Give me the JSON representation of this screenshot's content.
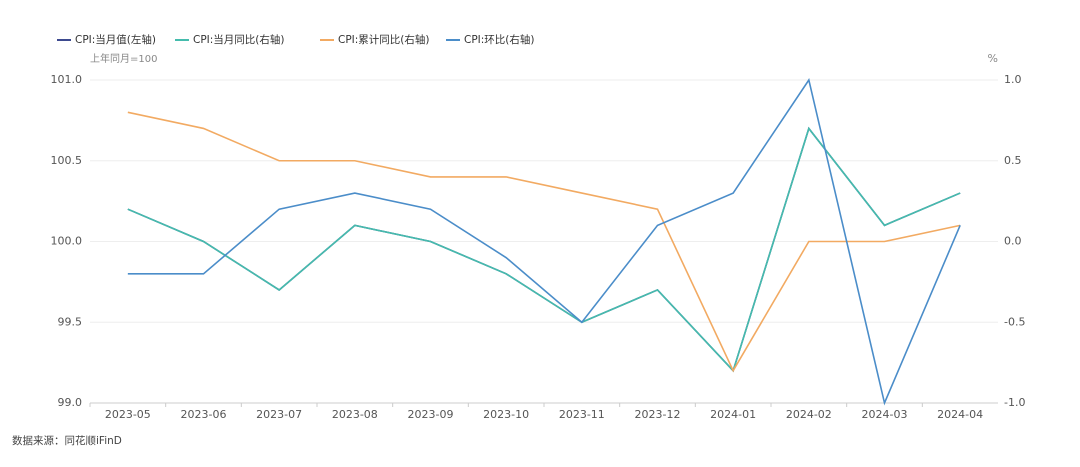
{
  "chart_data": {
    "type": "line",
    "categories": [
      "2023-05",
      "2023-06",
      "2023-07",
      "2023-08",
      "2023-09",
      "2023-10",
      "2023-11",
      "2023-12",
      "2024-01",
      "2024-02",
      "2024-03",
      "2024-04"
    ],
    "series": [
      {
        "name": "CPI:当月值(左轴)",
        "color": "#3d4a8f",
        "values": [
          100.2,
          100.0,
          99.7,
          100.1,
          100.0,
          99.8,
          99.5,
          99.7,
          99.2,
          100.7,
          100.1,
          100.3
        ]
      },
      {
        "name": "CPI:当月同比(右轴)",
        "color": "#45bcad",
        "axis": "y2",
        "values": [
          0.2,
          0.0,
          -0.3,
          0.1,
          0.0,
          -0.2,
          -0.5,
          -0.3,
          -0.8,
          0.7,
          0.1,
          0.3
        ]
      },
      {
        "name": "CPI:累计同比(右轴)",
        "color": "#f2aa62",
        "axis": "y2",
        "values": [
          0.8,
          0.7,
          0.5,
          0.5,
          0.4,
          0.4,
          0.3,
          0.2,
          -0.8,
          0.0,
          0.0,
          0.1
        ]
      },
      {
        "name": "CPI:环比(右轴)",
        "color": "#4b8dc9",
        "axis": "y2",
        "values": [
          -0.2,
          -0.2,
          0.2,
          0.3,
          0.2,
          -0.1,
          -0.5,
          0.1,
          0.3,
          1.0,
          -1.0,
          0.1
        ]
      }
    ],
    "y_label": "上年同月=100",
    "y2_label": "%",
    "source": "数据来源：同花顺iFinD",
    "ylim": [
      99.0,
      101.0
    ],
    "yticks": [
      {
        "value": 99.0,
        "label": "99.0"
      },
      99.5,
      {
        "value": 100.0,
        "label": "100.0"
      },
      100.5,
      {
        "value": 101.0,
        "label": "101.0"
      }
    ],
    "y2lim": [
      -1.0,
      1.0
    ],
    "y2ticks": [
      {
        "value": -1.0,
        "label": "-1.0"
      },
      -0.5,
      {
        "value": 0.0,
        "label": "0.0"
      },
      0.5,
      {
        "value": 1.0,
        "label": "1.0"
      }
    ],
    "grid": true,
    "legend": "top-left"
  }
}
